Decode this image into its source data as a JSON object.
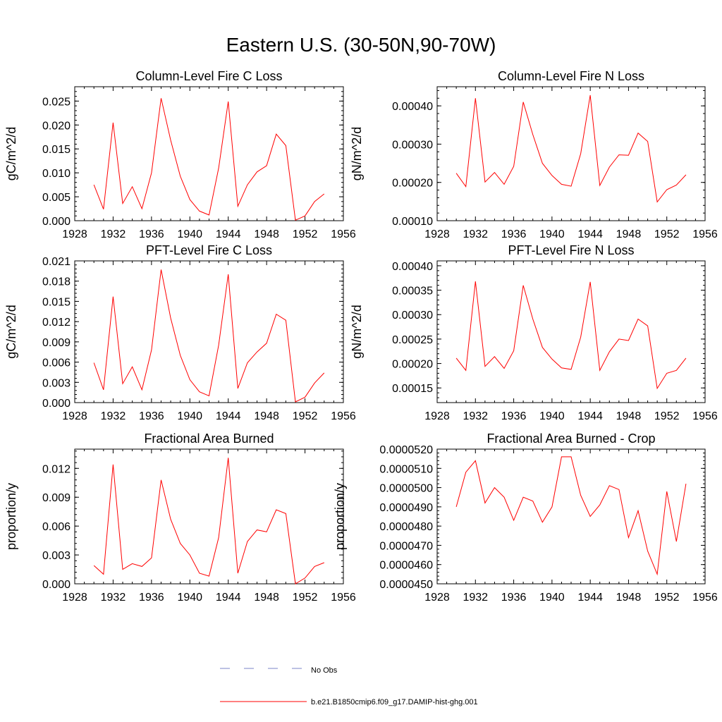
{
  "page": {
    "title": "Eastern U.S. (30-50N,90-70W)"
  },
  "colors": {
    "model_line": "#ff0000",
    "obs_line": "#7b86c8",
    "axis": "#000000"
  },
  "legend": {
    "entries": [
      {
        "label": "No Obs",
        "style": "dashed",
        "color": "#7b86c8"
      },
      {
        "label": "b.e21.B1850cmip6.f09_g17.DAMIP-hist-ghg.001",
        "style": "solid",
        "color": "#ff0000"
      }
    ]
  },
  "chart_data": [
    {
      "type": "line",
      "title": "Column-Level Fire C Loss",
      "ylabel": "gC/m^2/d",
      "xlim": [
        1928,
        1956
      ],
      "xticks": [
        1928,
        1932,
        1936,
        1940,
        1944,
        1948,
        1952,
        1956
      ],
      "ylim": [
        0,
        0.028
      ],
      "yticks": [
        0.0,
        0.005,
        0.01,
        0.015,
        0.02,
        0.025
      ],
      "ytick_labels": [
        "0.000",
        "0.005",
        "0.010",
        "0.015",
        "0.020",
        "0.025"
      ],
      "x": [
        1930,
        1931,
        1932,
        1933,
        1934,
        1935,
        1936,
        1937,
        1938,
        1939,
        1940,
        1941,
        1942,
        1943,
        1944,
        1945,
        1946,
        1947,
        1948,
        1949,
        1950,
        1951,
        1952,
        1953,
        1954
      ],
      "series": [
        {
          "values": [
            0.0075,
            0.0024,
            0.0205,
            0.0036,
            0.0071,
            0.0025,
            0.01,
            0.0256,
            0.0168,
            0.0093,
            0.0044,
            0.002,
            0.0012,
            0.011,
            0.0249,
            0.003,
            0.0075,
            0.0102,
            0.0115,
            0.0181,
            0.0157,
            0.0001,
            0.001,
            0.004,
            0.0056
          ]
        }
      ]
    },
    {
      "type": "line",
      "title": "Column-Level Fire N Loss",
      "ylabel": "gN/m^2/d",
      "xlim": [
        1928,
        1956
      ],
      "xticks": [
        1928,
        1932,
        1936,
        1940,
        1944,
        1948,
        1952,
        1956
      ],
      "ylim": [
        0.0001,
        0.00045
      ],
      "yticks": [
        0.0001,
        0.0002,
        0.0003,
        0.0004
      ],
      "ytick_labels": [
        "0.00010",
        "0.00020",
        "0.00030",
        "0.00040"
      ],
      "x": [
        1930,
        1931,
        1932,
        1933,
        1934,
        1935,
        1936,
        1937,
        1938,
        1939,
        1940,
        1941,
        1942,
        1943,
        1944,
        1945,
        1946,
        1947,
        1948,
        1949,
        1950,
        1951,
        1952,
        1953,
        1954
      ],
      "series": [
        {
          "values": [
            0.000224,
            0.000189,
            0.00042,
            0.000201,
            0.000226,
            0.000195,
            0.000242,
            0.00041,
            0.000325,
            0.00025,
            0.000218,
            0.000195,
            0.00019,
            0.000275,
            0.000428,
            0.000192,
            0.00024,
            0.000272,
            0.000271,
            0.000329,
            0.000307,
            0.000149,
            0.000181,
            0.000193,
            0.00022
          ]
        }
      ]
    },
    {
      "type": "line",
      "title": "PFT-Level Fire C Loss",
      "ylabel": "gC/m^2/d",
      "xlim": [
        1928,
        1956
      ],
      "xticks": [
        1928,
        1932,
        1936,
        1940,
        1944,
        1948,
        1952,
        1956
      ],
      "ylim": [
        0,
        0.021
      ],
      "yticks": [
        0.0,
        0.003,
        0.006,
        0.009,
        0.012,
        0.015,
        0.018,
        0.021
      ],
      "ytick_labels": [
        "0.000",
        "0.003",
        "0.006",
        "0.009",
        "0.012",
        "0.015",
        "0.018",
        "0.021"
      ],
      "x": [
        1930,
        1931,
        1932,
        1933,
        1934,
        1935,
        1936,
        1937,
        1938,
        1939,
        1940,
        1941,
        1942,
        1943,
        1944,
        1945,
        1946,
        1947,
        1948,
        1949,
        1950,
        1951,
        1952,
        1953,
        1954
      ],
      "series": [
        {
          "values": [
            0.0059,
            0.0019,
            0.0157,
            0.0028,
            0.0053,
            0.0019,
            0.0078,
            0.0197,
            0.0125,
            0.007,
            0.0034,
            0.0016,
            0.001,
            0.0085,
            0.019,
            0.0021,
            0.0059,
            0.0075,
            0.0088,
            0.0131,
            0.0122,
            0.0001,
            0.0008,
            0.0029,
            0.0044
          ]
        }
      ]
    },
    {
      "type": "line",
      "title": "PFT-Level Fire N Loss",
      "ylabel": "gN/m^2/d",
      "xlim": [
        1928,
        1956
      ],
      "xticks": [
        1928,
        1932,
        1936,
        1940,
        1944,
        1948,
        1952,
        1956
      ],
      "ylim": [
        0.00012,
        0.00041
      ],
      "yticks": [
        0.00015,
        0.0002,
        0.00025,
        0.0003,
        0.00035,
        0.0004
      ],
      "ytick_labels": [
        "0.00015",
        "0.00020",
        "0.00025",
        "0.00030",
        "0.00035",
        "0.00040"
      ],
      "x": [
        1930,
        1931,
        1932,
        1933,
        1934,
        1935,
        1936,
        1937,
        1938,
        1939,
        1940,
        1941,
        1942,
        1943,
        1944,
        1945,
        1946,
        1947,
        1948,
        1949,
        1950,
        1951,
        1952,
        1953,
        1954
      ],
      "series": [
        {
          "values": [
            0.000211,
            0.000186,
            0.000368,
            0.000194,
            0.000214,
            0.00019,
            0.000226,
            0.00036,
            0.000291,
            0.000233,
            0.000209,
            0.000191,
            0.000188,
            0.000254,
            0.000367,
            0.000186,
            0.000224,
            0.00025,
            0.000247,
            0.000291,
            0.000277,
            0.000149,
            0.00018,
            0.000186,
            0.000211
          ]
        }
      ]
    },
    {
      "type": "line",
      "title": "Fractional Area Burned",
      "ylabel": "proportion/y",
      "xlim": [
        1928,
        1956
      ],
      "xticks": [
        1928,
        1932,
        1936,
        1940,
        1944,
        1948,
        1952,
        1956
      ],
      "ylim": [
        0,
        0.014
      ],
      "yticks": [
        0.0,
        0.003,
        0.006,
        0.009,
        0.012
      ],
      "ytick_labels": [
        "0.000",
        "0.003",
        "0.006",
        "0.009",
        "0.012"
      ],
      "x": [
        1930,
        1931,
        1932,
        1933,
        1934,
        1935,
        1936,
        1937,
        1938,
        1939,
        1940,
        1941,
        1942,
        1943,
        1944,
        1945,
        1946,
        1947,
        1948,
        1949,
        1950,
        1951,
        1952,
        1953,
        1954
      ],
      "series": [
        {
          "values": [
            0.0019,
            0.001,
            0.0124,
            0.0015,
            0.0021,
            0.0018,
            0.0027,
            0.0108,
            0.0067,
            0.0042,
            0.003,
            0.0011,
            0.0008,
            0.0048,
            0.0131,
            0.0011,
            0.0044,
            0.0056,
            0.0054,
            0.0077,
            0.0073,
            0.0,
            0.0006,
            0.0018,
            0.0022
          ]
        }
      ]
    },
    {
      "type": "line",
      "title": "Fractional Area Burned - Crop",
      "ylabel": "proportion/y",
      "xlim": [
        1928,
        1956
      ],
      "xticks": [
        1928,
        1932,
        1936,
        1940,
        1944,
        1948,
        1952,
        1956
      ],
      "ylim": [
        4.5e-05,
        5.2e-05
      ],
      "yticks": [
        4.5e-05,
        4.6e-05,
        4.7e-05,
        4.8e-05,
        4.9e-05,
        5e-05,
        5.1e-05,
        5.2e-05
      ],
      "ytick_labels": [
        "0.0000450",
        "0.0000460",
        "0.0000470",
        "0.0000480",
        "0.0000490",
        "0.0000500",
        "0.0000510",
        "0.0000520"
      ],
      "x": [
        1930,
        1931,
        1932,
        1933,
        1934,
        1935,
        1936,
        1937,
        1938,
        1939,
        1940,
        1941,
        1942,
        1943,
        1944,
        1945,
        1946,
        1947,
        1948,
        1949,
        1950,
        1951,
        1952,
        1953,
        1954
      ],
      "series": [
        {
          "values": [
            4.9e-05,
            5.08e-05,
            5.14e-05,
            4.92e-05,
            5e-05,
            4.95e-05,
            4.83e-05,
            4.95e-05,
            4.93e-05,
            4.82e-05,
            4.9e-05,
            5.16e-05,
            5.16e-05,
            4.96e-05,
            4.85e-05,
            4.91e-05,
            5.01e-05,
            4.99e-05,
            4.74e-05,
            4.88e-05,
            4.67e-05,
            4.55e-05,
            4.98e-05,
            4.72e-05,
            5.02e-05
          ]
        }
      ]
    }
  ]
}
